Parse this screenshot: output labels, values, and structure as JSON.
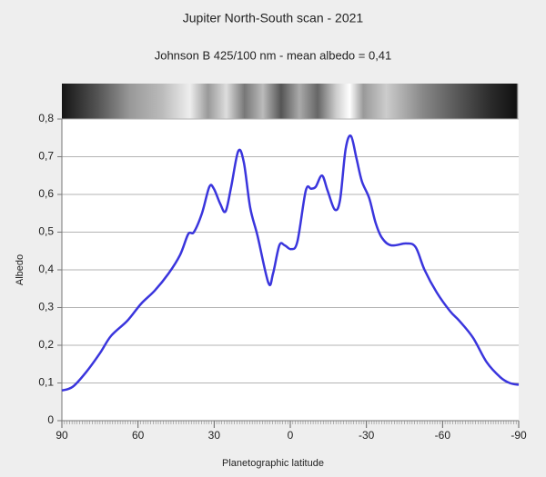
{
  "chart_data": {
    "type": "line",
    "title": "Jupiter North-South scan - 2021",
    "subtitle": "Johnson B 425/100 nm - mean albedo = 0,41",
    "xlabel": "Planetographic latitude",
    "ylabel": "Albedo",
    "x": [
      90,
      85.7,
      80.3,
      74.9,
      70.6,
      64.2,
      58.8,
      53.4,
      48,
      43.4,
      40.2,
      38,
      34.8,
      31.9,
      30.1,
      27.6,
      25.5,
      23.3,
      20.5,
      18.3,
      15.8,
      12.9,
      8.6,
      6.8,
      4.3,
      2.2,
      -0.3,
      -2.8,
      -6.1,
      -8.2,
      -10,
      -12.5,
      -14.7,
      -17.5,
      -19.6,
      -21.8,
      -23.9,
      -26.1,
      -28.2,
      -31.1,
      -33.6,
      -36.1,
      -39.7,
      -45.8,
      -49.4,
      -52.9,
      -57.7,
      -63,
      -66.6,
      -72,
      -77.4,
      -82.8,
      -86.4,
      -90
    ],
    "values": [
      0.08,
      0.09,
      0.13,
      0.18,
      0.225,
      0.265,
      0.31,
      0.345,
      0.39,
      0.44,
      0.495,
      0.5,
      0.55,
      0.62,
      0.615,
      0.575,
      0.555,
      0.62,
      0.715,
      0.685,
      0.565,
      0.49,
      0.365,
      0.39,
      0.465,
      0.465,
      0.455,
      0.475,
      0.61,
      0.615,
      0.62,
      0.65,
      0.61,
      0.56,
      0.585,
      0.72,
      0.755,
      0.695,
      0.635,
      0.59,
      0.525,
      0.485,
      0.465,
      0.47,
      0.46,
      0.4,
      0.34,
      0.29,
      0.265,
      0.22,
      0.155,
      0.115,
      0.1,
      0.095
    ],
    "color": "#3a35dd",
    "xlim": [
      90,
      -90
    ],
    "xticks": [
      90,
      60,
      30,
      0,
      -30,
      -60,
      -90
    ],
    "ylim": [
      0,
      0.8
    ],
    "yticks": [
      0,
      {
        "value": 0.1,
        "label": "0,1"
      },
      {
        "value": 0.2,
        "label": "0,2"
      },
      {
        "value": 0.3,
        "label": "0,3"
      },
      {
        "value": 0.4,
        "label": "0,4"
      },
      {
        "value": 0.5,
        "label": "0,5"
      },
      {
        "value": 0.6,
        "label": "0,6"
      },
      {
        "value": 0.7,
        "label": "0,7"
      },
      {
        "value": 0.8,
        "label": "0,8"
      }
    ],
    "grid": true
  }
}
